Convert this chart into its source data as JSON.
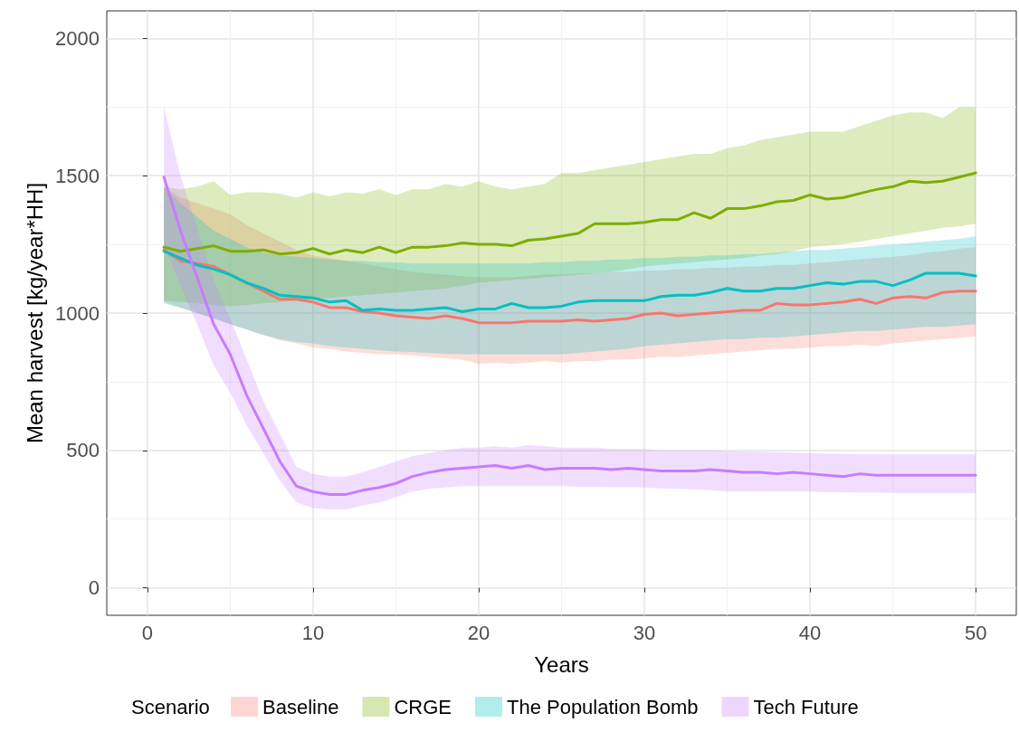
{
  "chart_data": {
    "type": "line",
    "xlabel": "Years",
    "ylabel": "Mean harvest [kg/year*HH]",
    "legend_title": "Scenario",
    "x": [
      1,
      2,
      3,
      4,
      5,
      6,
      7,
      8,
      9,
      10,
      11,
      12,
      13,
      14,
      15,
      16,
      17,
      18,
      19,
      20,
      21,
      22,
      23,
      24,
      25,
      26,
      27,
      28,
      29,
      30,
      31,
      32,
      33,
      34,
      35,
      36,
      37,
      38,
      39,
      40,
      41,
      42,
      43,
      44,
      45,
      46,
      47,
      48,
      49,
      50
    ],
    "xlim": [
      -2.45,
      52.45
    ],
    "xticks": [
      0,
      10,
      20,
      30,
      40,
      50
    ],
    "ylim": [
      -100,
      2100
    ],
    "yticks": [
      0,
      500,
      1000,
      1500,
      2000
    ],
    "grid": true,
    "legend": "bottom",
    "marker": "none",
    "line_style": "solid",
    "series": [
      {
        "name": "Baseline",
        "color": "#f8766d",
        "values": [
          1230,
          1190,
          1180,
          1170,
          1140,
          1110,
          1080,
          1050,
          1050,
          1040,
          1020,
          1020,
          1005,
          1000,
          990,
          985,
          980,
          990,
          980,
          965,
          965,
          965,
          970,
          970,
          970,
          975,
          970,
          975,
          980,
          995,
          1000,
          990,
          995,
          1000,
          1005,
          1010,
          1010,
          1035,
          1030,
          1030,
          1035,
          1040,
          1050,
          1035,
          1055,
          1060,
          1055,
          1075,
          1080,
          1080
        ],
        "lower": [
          1040,
          1020,
          1000,
          980,
          960,
          940,
          920,
          900,
          890,
          875,
          870,
          860,
          855,
          850,
          850,
          845,
          840,
          835,
          830,
          815,
          820,
          815,
          820,
          825,
          820,
          825,
          825,
          830,
          830,
          835,
          840,
          840,
          845,
          850,
          855,
          860,
          865,
          870,
          870,
          875,
          880,
          880,
          885,
          880,
          890,
          895,
          900,
          905,
          910,
          915
        ],
        "upper": [
          1460,
          1420,
          1400,
          1380,
          1360,
          1320,
          1290,
          1260,
          1230,
          1210,
          1200,
          1190,
          1180,
          1170,
          1160,
          1150,
          1145,
          1140,
          1135,
          1130,
          1130,
          1130,
          1135,
          1140,
          1140,
          1145,
          1145,
          1150,
          1150,
          1155,
          1155,
          1160,
          1160,
          1165,
          1165,
          1170,
          1170,
          1175,
          1175,
          1180,
          1185,
          1190,
          1195,
          1200,
          1205,
          1210,
          1220,
          1225,
          1235,
          1240
        ]
      },
      {
        "name": "CRGE",
        "color": "#7cae00",
        "values": [
          1240,
          1225,
          1235,
          1245,
          1225,
          1225,
          1230,
          1215,
          1220,
          1235,
          1215,
          1230,
          1220,
          1240,
          1220,
          1240,
          1240,
          1245,
          1255,
          1250,
          1250,
          1245,
          1265,
          1270,
          1280,
          1290,
          1325,
          1325,
          1325,
          1330,
          1340,
          1340,
          1365,
          1345,
          1380,
          1380,
          1390,
          1405,
          1410,
          1430,
          1415,
          1420,
          1435,
          1450,
          1460,
          1480,
          1475,
          1480,
          1495,
          1510
        ],
        "lower": [
          1045,
          1040,
          1035,
          1030,
          1025,
          1030,
          1035,
          1040,
          1045,
          1050,
          1055,
          1060,
          1065,
          1070,
          1075,
          1080,
          1085,
          1090,
          1100,
          1110,
          1115,
          1120,
          1125,
          1130,
          1135,
          1140,
          1145,
          1150,
          1160,
          1170,
          1175,
          1180,
          1185,
          1190,
          1195,
          1200,
          1210,
          1215,
          1225,
          1240,
          1245,
          1250,
          1260,
          1270,
          1280,
          1290,
          1300,
          1310,
          1315,
          1325
        ],
        "upper": [
          1460,
          1450,
          1460,
          1480,
          1430,
          1440,
          1440,
          1435,
          1420,
          1440,
          1425,
          1440,
          1435,
          1450,
          1430,
          1450,
          1450,
          1470,
          1460,
          1480,
          1460,
          1450,
          1460,
          1470,
          1510,
          1510,
          1520,
          1530,
          1540,
          1550,
          1560,
          1570,
          1580,
          1580,
          1600,
          1610,
          1630,
          1640,
          1650,
          1660,
          1660,
          1660,
          1680,
          1700,
          1720,
          1730,
          1730,
          1710,
          1750,
          1750
        ]
      },
      {
        "name": "The Population Bomb",
        "color": "#00bfc4",
        "values": [
          1225,
          1200,
          1175,
          1160,
          1140,
          1110,
          1090,
          1065,
          1060,
          1055,
          1040,
          1045,
          1010,
          1015,
          1010,
          1010,
          1015,
          1020,
          1005,
          1015,
          1015,
          1035,
          1020,
          1020,
          1025,
          1040,
          1045,
          1045,
          1045,
          1045,
          1060,
          1065,
          1065,
          1075,
          1090,
          1080,
          1080,
          1090,
          1090,
          1100,
          1110,
          1105,
          1115,
          1115,
          1100,
          1120,
          1145,
          1145,
          1145,
          1135
        ],
        "lower": [
          1035,
          1020,
          1000,
          980,
          960,
          940,
          920,
          905,
          895,
          890,
          880,
          875,
          870,
          865,
          860,
          858,
          855,
          852,
          850,
          850,
          850,
          850,
          850,
          850,
          850,
          855,
          860,
          865,
          870,
          880,
          885,
          890,
          895,
          900,
          905,
          905,
          910,
          910,
          915,
          920,
          925,
          930,
          935,
          935,
          940,
          945,
          950,
          950,
          955,
          960
        ],
        "upper": [
          1460,
          1400,
          1350,
          1300,
          1270,
          1240,
          1220,
          1210,
          1205,
          1200,
          1195,
          1190,
          1190,
          1185,
          1185,
          1180,
          1180,
          1180,
          1180,
          1180,
          1180,
          1180,
          1180,
          1185,
          1185,
          1190,
          1190,
          1195,
          1195,
          1200,
          1200,
          1205,
          1205,
          1210,
          1210,
          1215,
          1215,
          1220,
          1225,
          1230,
          1230,
          1235,
          1240,
          1245,
          1250,
          1255,
          1260,
          1265,
          1270,
          1280
        ]
      },
      {
        "name": "Tech Future",
        "color": "#c77cff",
        "values": [
          1495,
          1300,
          1130,
          960,
          850,
          700,
          580,
          460,
          370,
          350,
          340,
          340,
          355,
          365,
          380,
          405,
          420,
          430,
          435,
          440,
          445,
          435,
          445,
          430,
          435,
          435,
          435,
          430,
          435,
          430,
          425,
          425,
          425,
          430,
          425,
          420,
          420,
          415,
          420,
          415,
          410,
          405,
          415,
          410,
          410,
          410,
          410,
          410,
          410,
          410
        ],
        "lower": [
          1250,
          1100,
          960,
          810,
          710,
          590,
          490,
          390,
          310,
          290,
          285,
          285,
          300,
          310,
          330,
          350,
          360,
          365,
          370,
          370,
          370,
          370,
          370,
          370,
          370,
          368,
          368,
          366,
          366,
          365,
          362,
          360,
          358,
          355,
          350,
          350,
          350,
          350,
          350,
          350,
          348,
          348,
          346,
          346,
          345,
          345,
          345,
          345,
          345,
          345
        ],
        "upper": [
          1750,
          1500,
          1310,
          1120,
          980,
          830,
          680,
          560,
          440,
          415,
          405,
          405,
          420,
          440,
          460,
          480,
          490,
          500,
          510,
          510,
          515,
          510,
          520,
          515,
          510,
          510,
          510,
          505,
          505,
          505,
          500,
          500,
          500,
          500,
          498,
          496,
          495,
          494,
          492,
          490,
          488,
          488,
          486,
          486,
          485,
          485,
          485,
          485,
          485,
          485
        ]
      }
    ]
  }
}
